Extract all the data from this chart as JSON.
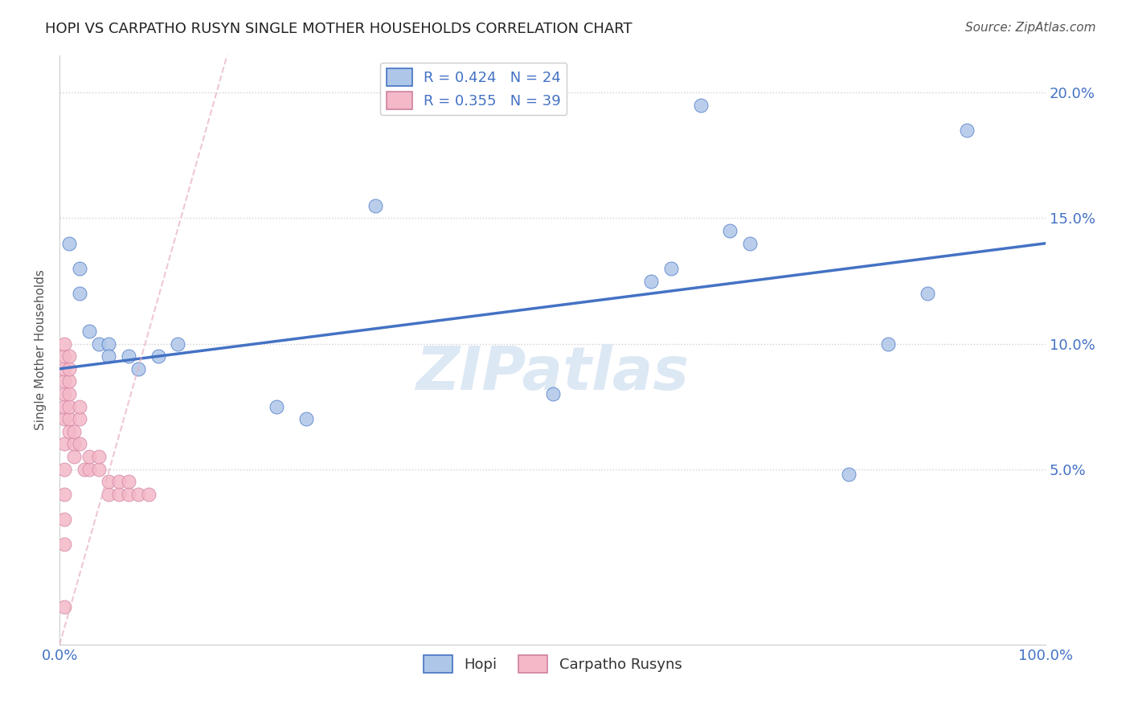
{
  "title": "HOPI VS CARPATHO RUSYN SINGLE MOTHER HOUSEHOLDS CORRELATION CHART",
  "source": "Source: ZipAtlas.com",
  "ylabel": "Single Mother Households",
  "watermark": "ZIPatlas",
  "hopi_R": 0.424,
  "hopi_N": 24,
  "rusyn_R": 0.355,
  "rusyn_N": 39,
  "xlim": [
    0.0,
    1.0
  ],
  "ylim": [
    -0.02,
    0.215
  ],
  "xticks": [
    0.0,
    0.25,
    0.5,
    0.75,
    1.0
  ],
  "xtick_labels": [
    "0.0%",
    "",
    "",
    "",
    "100.0%"
  ],
  "yticks": [
    0.05,
    0.1,
    0.15,
    0.2
  ],
  "ytick_labels": [
    "5.0%",
    "10.0%",
    "15.0%",
    "20.0%"
  ],
  "hopi_color": "#aec6e8",
  "rusyn_color": "#f4b8c8",
  "hopi_line_color": "#4472c4",
  "rusyn_line_color": "#e8a0b0",
  "hopi_scatter": [
    [
      0.01,
      0.14
    ],
    [
      0.02,
      0.13
    ],
    [
      0.02,
      0.12
    ],
    [
      0.03,
      0.105
    ],
    [
      0.04,
      0.1
    ],
    [
      0.05,
      0.1
    ],
    [
      0.05,
      0.095
    ],
    [
      0.07,
      0.095
    ],
    [
      0.08,
      0.09
    ],
    [
      0.1,
      0.095
    ],
    [
      0.12,
      0.1
    ],
    [
      0.22,
      0.075
    ],
    [
      0.25,
      0.07
    ],
    [
      0.32,
      0.155
    ],
    [
      0.5,
      0.08
    ],
    [
      0.6,
      0.125
    ],
    [
      0.62,
      0.13
    ],
    [
      0.65,
      0.195
    ],
    [
      0.68,
      0.145
    ],
    [
      0.7,
      0.14
    ],
    [
      0.8,
      0.048
    ],
    [
      0.84,
      0.1
    ],
    [
      0.88,
      0.12
    ],
    [
      0.92,
      0.185
    ]
  ],
  "rusyn_scatter": [
    [
      0.005,
      0.02
    ],
    [
      0.005,
      0.03
    ],
    [
      0.005,
      0.04
    ],
    [
      0.005,
      0.05
    ],
    [
      0.005,
      0.06
    ],
    [
      0.005,
      0.07
    ],
    [
      0.005,
      0.075
    ],
    [
      0.005,
      0.08
    ],
    [
      0.005,
      0.085
    ],
    [
      0.005,
      0.09
    ],
    [
      0.005,
      0.095
    ],
    [
      0.005,
      0.1
    ],
    [
      0.01,
      0.065
    ],
    [
      0.01,
      0.07
    ],
    [
      0.01,
      0.075
    ],
    [
      0.01,
      0.08
    ],
    [
      0.01,
      0.085
    ],
    [
      0.01,
      0.09
    ],
    [
      0.01,
      0.095
    ],
    [
      0.015,
      0.055
    ],
    [
      0.015,
      0.06
    ],
    [
      0.015,
      0.065
    ],
    [
      0.02,
      0.06
    ],
    [
      0.02,
      0.07
    ],
    [
      0.02,
      0.075
    ],
    [
      0.025,
      0.05
    ],
    [
      0.03,
      0.05
    ],
    [
      0.03,
      0.055
    ],
    [
      0.04,
      0.05
    ],
    [
      0.04,
      0.055
    ],
    [
      0.05,
      0.04
    ],
    [
      0.05,
      0.045
    ],
    [
      0.06,
      0.04
    ],
    [
      0.06,
      0.045
    ],
    [
      0.07,
      0.04
    ],
    [
      0.07,
      0.045
    ],
    [
      0.08,
      0.04
    ],
    [
      0.09,
      0.04
    ],
    [
      0.005,
      -0.005
    ]
  ],
  "hopi_trendline_x": [
    0.0,
    1.0
  ],
  "hopi_trendline_y": [
    0.09,
    0.14
  ],
  "rusyn_trendline_x": [
    0.0,
    0.17
  ],
  "rusyn_trendline_y": [
    -0.02,
    0.215
  ],
  "background_color": "#ffffff",
  "grid_color": "#d0d0d0"
}
